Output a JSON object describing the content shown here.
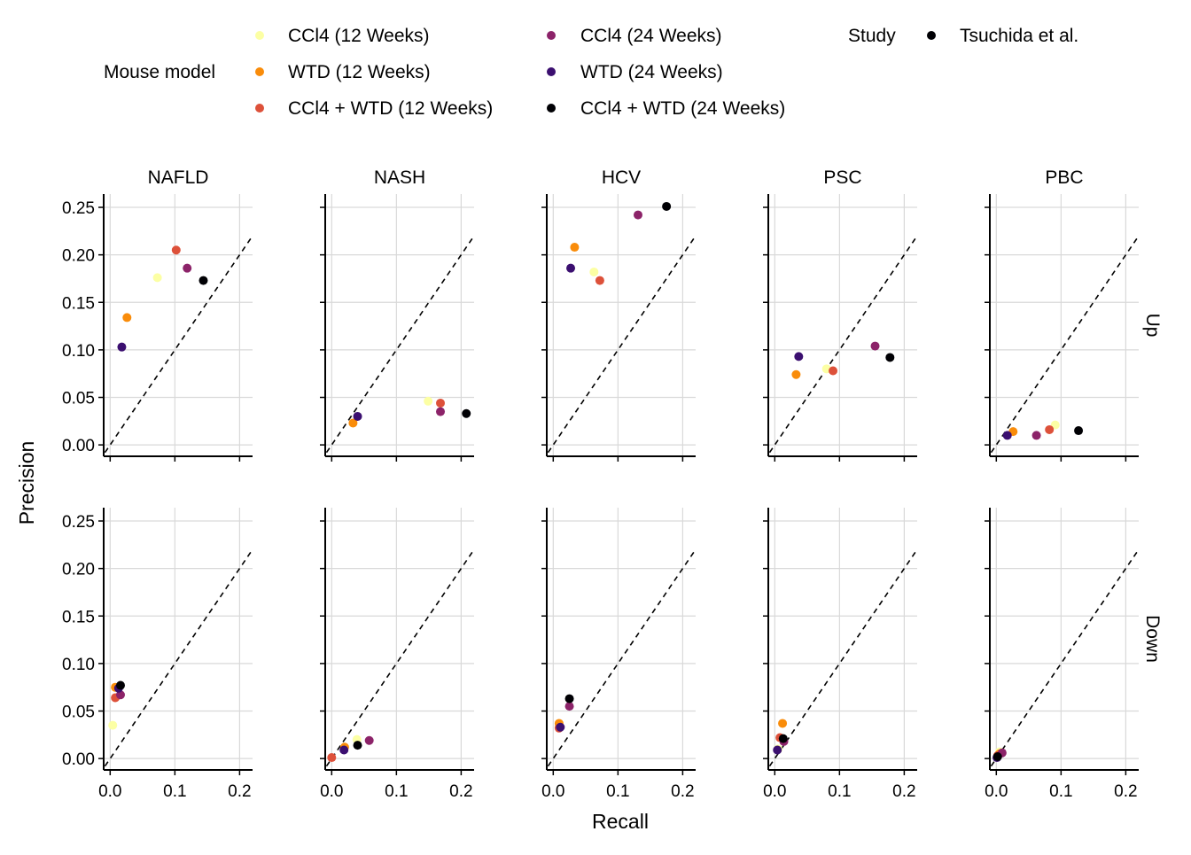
{
  "legend": {
    "title": "Mouse model",
    "study_title": "Study",
    "study_label": "Tsuchida et al.",
    "entries": [
      {
        "name": "CCl4 (12 Weeks)",
        "color": "#FCFFA4"
      },
      {
        "name": "WTD (12 Weeks)",
        "color": "#F98C0A"
      },
      {
        "name": "CCl4 + WTD (12 Weeks)",
        "color": "#DD513A"
      },
      {
        "name": "CCl4 (24 Weeks)",
        "color": "#8C2369"
      },
      {
        "name": "WTD (24 Weeks)",
        "color": "#3B0F70"
      },
      {
        "name": "CCl4 + WTD (24 Weeks)",
        "color": "#000004"
      }
    ]
  },
  "chart_data": {
    "type": "scatter",
    "xlabel": "Recall",
    "ylabel": "Precision",
    "columns": [
      "NAFLD",
      "NASH",
      "HCV",
      "PSC",
      "PBC"
    ],
    "rows": [
      "Up",
      "Down"
    ],
    "xlim": [
      -0.01,
      0.22
    ],
    "ylim": [
      -0.012,
      0.264
    ],
    "x_ticks": [
      0.0,
      0.1,
      0.2
    ],
    "x_tick_labels": [
      "0.0",
      "0.1",
      "0.2"
    ],
    "y_ticks": [
      0.0,
      0.05,
      0.1,
      0.15,
      0.2,
      0.25
    ],
    "y_tick_labels": [
      "0.00",
      "0.05",
      "0.10",
      "0.15",
      "0.20",
      "0.25"
    ],
    "reference_line": "y = x (dashed)",
    "grid": true,
    "series_order": [
      "CCl4 (12 Weeks)",
      "WTD (12 Weeks)",
      "CCl4 + WTD (12 Weeks)",
      "CCl4 (24 Weeks)",
      "WTD (24 Weeks)",
      "CCl4 + WTD (24 Weeks)"
    ],
    "panels": [
      {
        "column": "NAFLD",
        "row": "Up",
        "points": [
          [
            0.073,
            0.176
          ],
          [
            0.026,
            0.134
          ],
          [
            0.102,
            0.205
          ],
          [
            0.119,
            0.186
          ],
          [
            0.018,
            0.103
          ],
          [
            0.144,
            0.173
          ]
        ]
      },
      {
        "column": "NASH",
        "row": "Up",
        "points": [
          [
            0.149,
            0.046
          ],
          [
            0.033,
            0.023
          ],
          [
            0.168,
            0.044
          ],
          [
            0.168,
            0.035
          ],
          [
            0.04,
            0.03
          ],
          [
            0.208,
            0.033
          ]
        ]
      },
      {
        "column": "HCV",
        "row": "Up",
        "points": [
          [
            0.063,
            0.182
          ],
          [
            0.033,
            0.208
          ],
          [
            0.072,
            0.173
          ],
          [
            0.131,
            0.242
          ],
          [
            0.027,
            0.186
          ],
          [
            0.175,
            0.251
          ]
        ]
      },
      {
        "column": "PSC",
        "row": "Up",
        "points": [
          [
            0.08,
            0.08
          ],
          [
            0.033,
            0.074
          ],
          [
            0.09,
            0.078
          ],
          [
            0.155,
            0.104
          ],
          [
            0.037,
            0.093
          ],
          [
            0.178,
            0.092
          ]
        ]
      },
      {
        "column": "PBC",
        "row": "Up",
        "points": [
          [
            0.091,
            0.021
          ],
          [
            0.026,
            0.014
          ],
          [
            0.082,
            0.016
          ],
          [
            0.062,
            0.01
          ],
          [
            0.017,
            0.01
          ],
          [
            0.127,
            0.015
          ]
        ]
      },
      {
        "column": "NAFLD",
        "row": "Down",
        "points": [
          [
            0.004,
            0.035
          ],
          [
            0.008,
            0.075
          ],
          [
            0.008,
            0.064
          ],
          [
            0.016,
            0.067
          ],
          [
            0.013,
            0.074
          ],
          [
            0.016,
            0.077
          ]
        ]
      },
      {
        "column": "NASH",
        "row": "Down",
        "points": [
          [
            0.039,
            0.02
          ],
          [
            0.02,
            0.012
          ],
          [
            0.0,
            0.001
          ],
          [
            0.058,
            0.019
          ],
          [
            0.019,
            0.009
          ],
          [
            0.04,
            0.014
          ]
        ]
      },
      {
        "column": "HCV",
        "row": "Down",
        "points": [
          [
            0.009,
            0.034
          ],
          [
            0.009,
            0.037
          ],
          [
            0.009,
            0.032
          ],
          [
            0.025,
            0.055
          ],
          [
            0.011,
            0.033
          ],
          [
            0.025,
            0.063
          ]
        ]
      },
      {
        "column": "PSC",
        "row": "Down",
        "points": [
          [
            0.005,
            0.01
          ],
          [
            0.012,
            0.037
          ],
          [
            0.008,
            0.022
          ],
          [
            0.014,
            0.018
          ],
          [
            0.004,
            0.009
          ],
          [
            0.013,
            0.021
          ]
        ]
      },
      {
        "column": "PBC",
        "row": "Down",
        "points": [
          [
            0.005,
            0.007
          ],
          [
            0.005,
            0.005
          ],
          [
            0.002,
            0.003
          ],
          [
            0.009,
            0.006
          ],
          [
            0.001,
            0.001
          ],
          [
            0.002,
            0.002
          ]
        ]
      }
    ]
  }
}
